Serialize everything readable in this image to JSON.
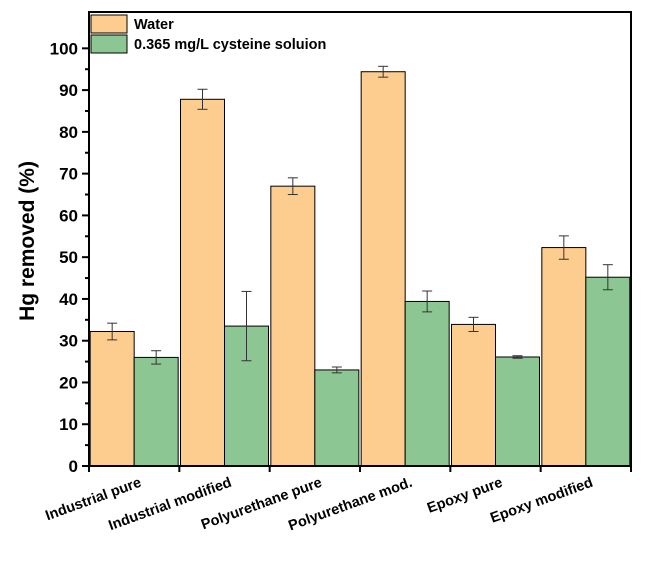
{
  "chart_data": {
    "type": "bar",
    "categories": [
      "Industrial pure",
      "Industrial modified",
      "Polyurethane pure",
      "Polyurethane mod.",
      "Epoxy pure",
      "Epoxy modified"
    ],
    "series": [
      {
        "name": "Water",
        "color": "#FDCC8F",
        "values": [
          32.2,
          87.8,
          67.0,
          94.4,
          33.9,
          52.3
        ],
        "errors": [
          2.0,
          2.4,
          2.0,
          1.3,
          1.7,
          2.8
        ]
      },
      {
        "name": "0.365 mg/L cysteine soluion",
        "color": "#8CC693",
        "values": [
          26.0,
          33.5,
          23.0,
          39.4,
          26.1,
          45.2
        ],
        "errors": [
          1.6,
          8.3,
          0.7,
          2.5,
          0.3,
          3.0
        ]
      }
    ],
    "ylabel": "Hg removed (%)",
    "xlabel": "",
    "ylim": [
      0,
      100
    ],
    "yticks": [
      0,
      10,
      20,
      30,
      40,
      50,
      60,
      70,
      80,
      90,
      100
    ],
    "grid": false,
    "legend_position": "top-left"
  }
}
